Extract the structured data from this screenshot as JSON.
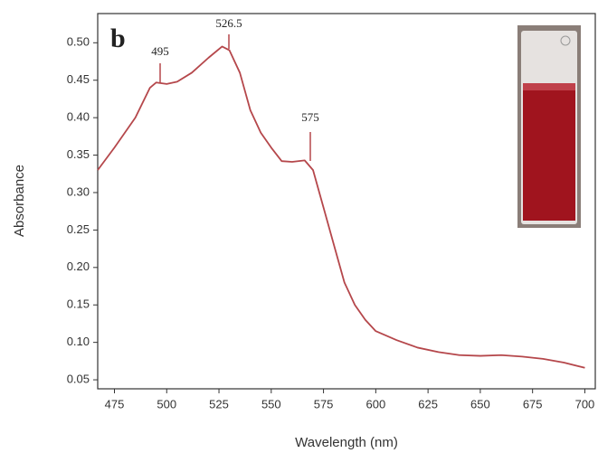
{
  "chart_data": {
    "type": "line",
    "panel_label": "b",
    "x_label": "Wavelength (nm)",
    "y_label": "Absorbance",
    "annotations": [
      "495",
      "526.5",
      "575"
    ],
    "x": [
      467,
      475,
      485,
      492,
      495,
      500,
      505,
      512,
      520,
      526.5,
      530,
      535,
      540,
      545,
      550,
      555,
      560,
      566,
      570,
      575,
      580,
      585,
      590,
      595,
      600,
      610,
      620,
      630,
      640,
      650,
      660,
      670,
      680,
      690,
      700
    ],
    "series": [
      {
        "color": "#b5474b",
        "values": [
          0.33,
          0.36,
          0.4,
          0.44,
          0.447,
          0.445,
          0.448,
          0.46,
          0.48,
          0.495,
          0.49,
          0.46,
          0.41,
          0.38,
          0.36,
          0.342,
          0.341,
          0.343,
          0.33,
          0.28,
          0.23,
          0.18,
          0.15,
          0.13,
          0.115,
          0.103,
          0.093,
          0.087,
          0.083,
          0.082,
          0.083,
          0.081,
          0.078,
          0.073,
          0.066
        ]
      }
    ],
    "xlim": [
      467,
      705
    ],
    "ylim": [
      0.038,
      0.539
    ],
    "xticks": [
      475,
      500,
      525,
      550,
      575,
      600,
      625,
      650,
      675,
      700
    ],
    "yticks": [
      0.05,
      {
        "value": 0.1,
        "label": "0.10"
      },
      0.15,
      {
        "value": 0.2,
        "label": "0.20"
      },
      0.25,
      {
        "value": 0.3,
        "label": "0.30"
      },
      0.35,
      {
        "value": 0.4,
        "label": "0.40"
      },
      0.45,
      {
        "value": 0.5,
        "label": "0.50"
      }
    ]
  }
}
